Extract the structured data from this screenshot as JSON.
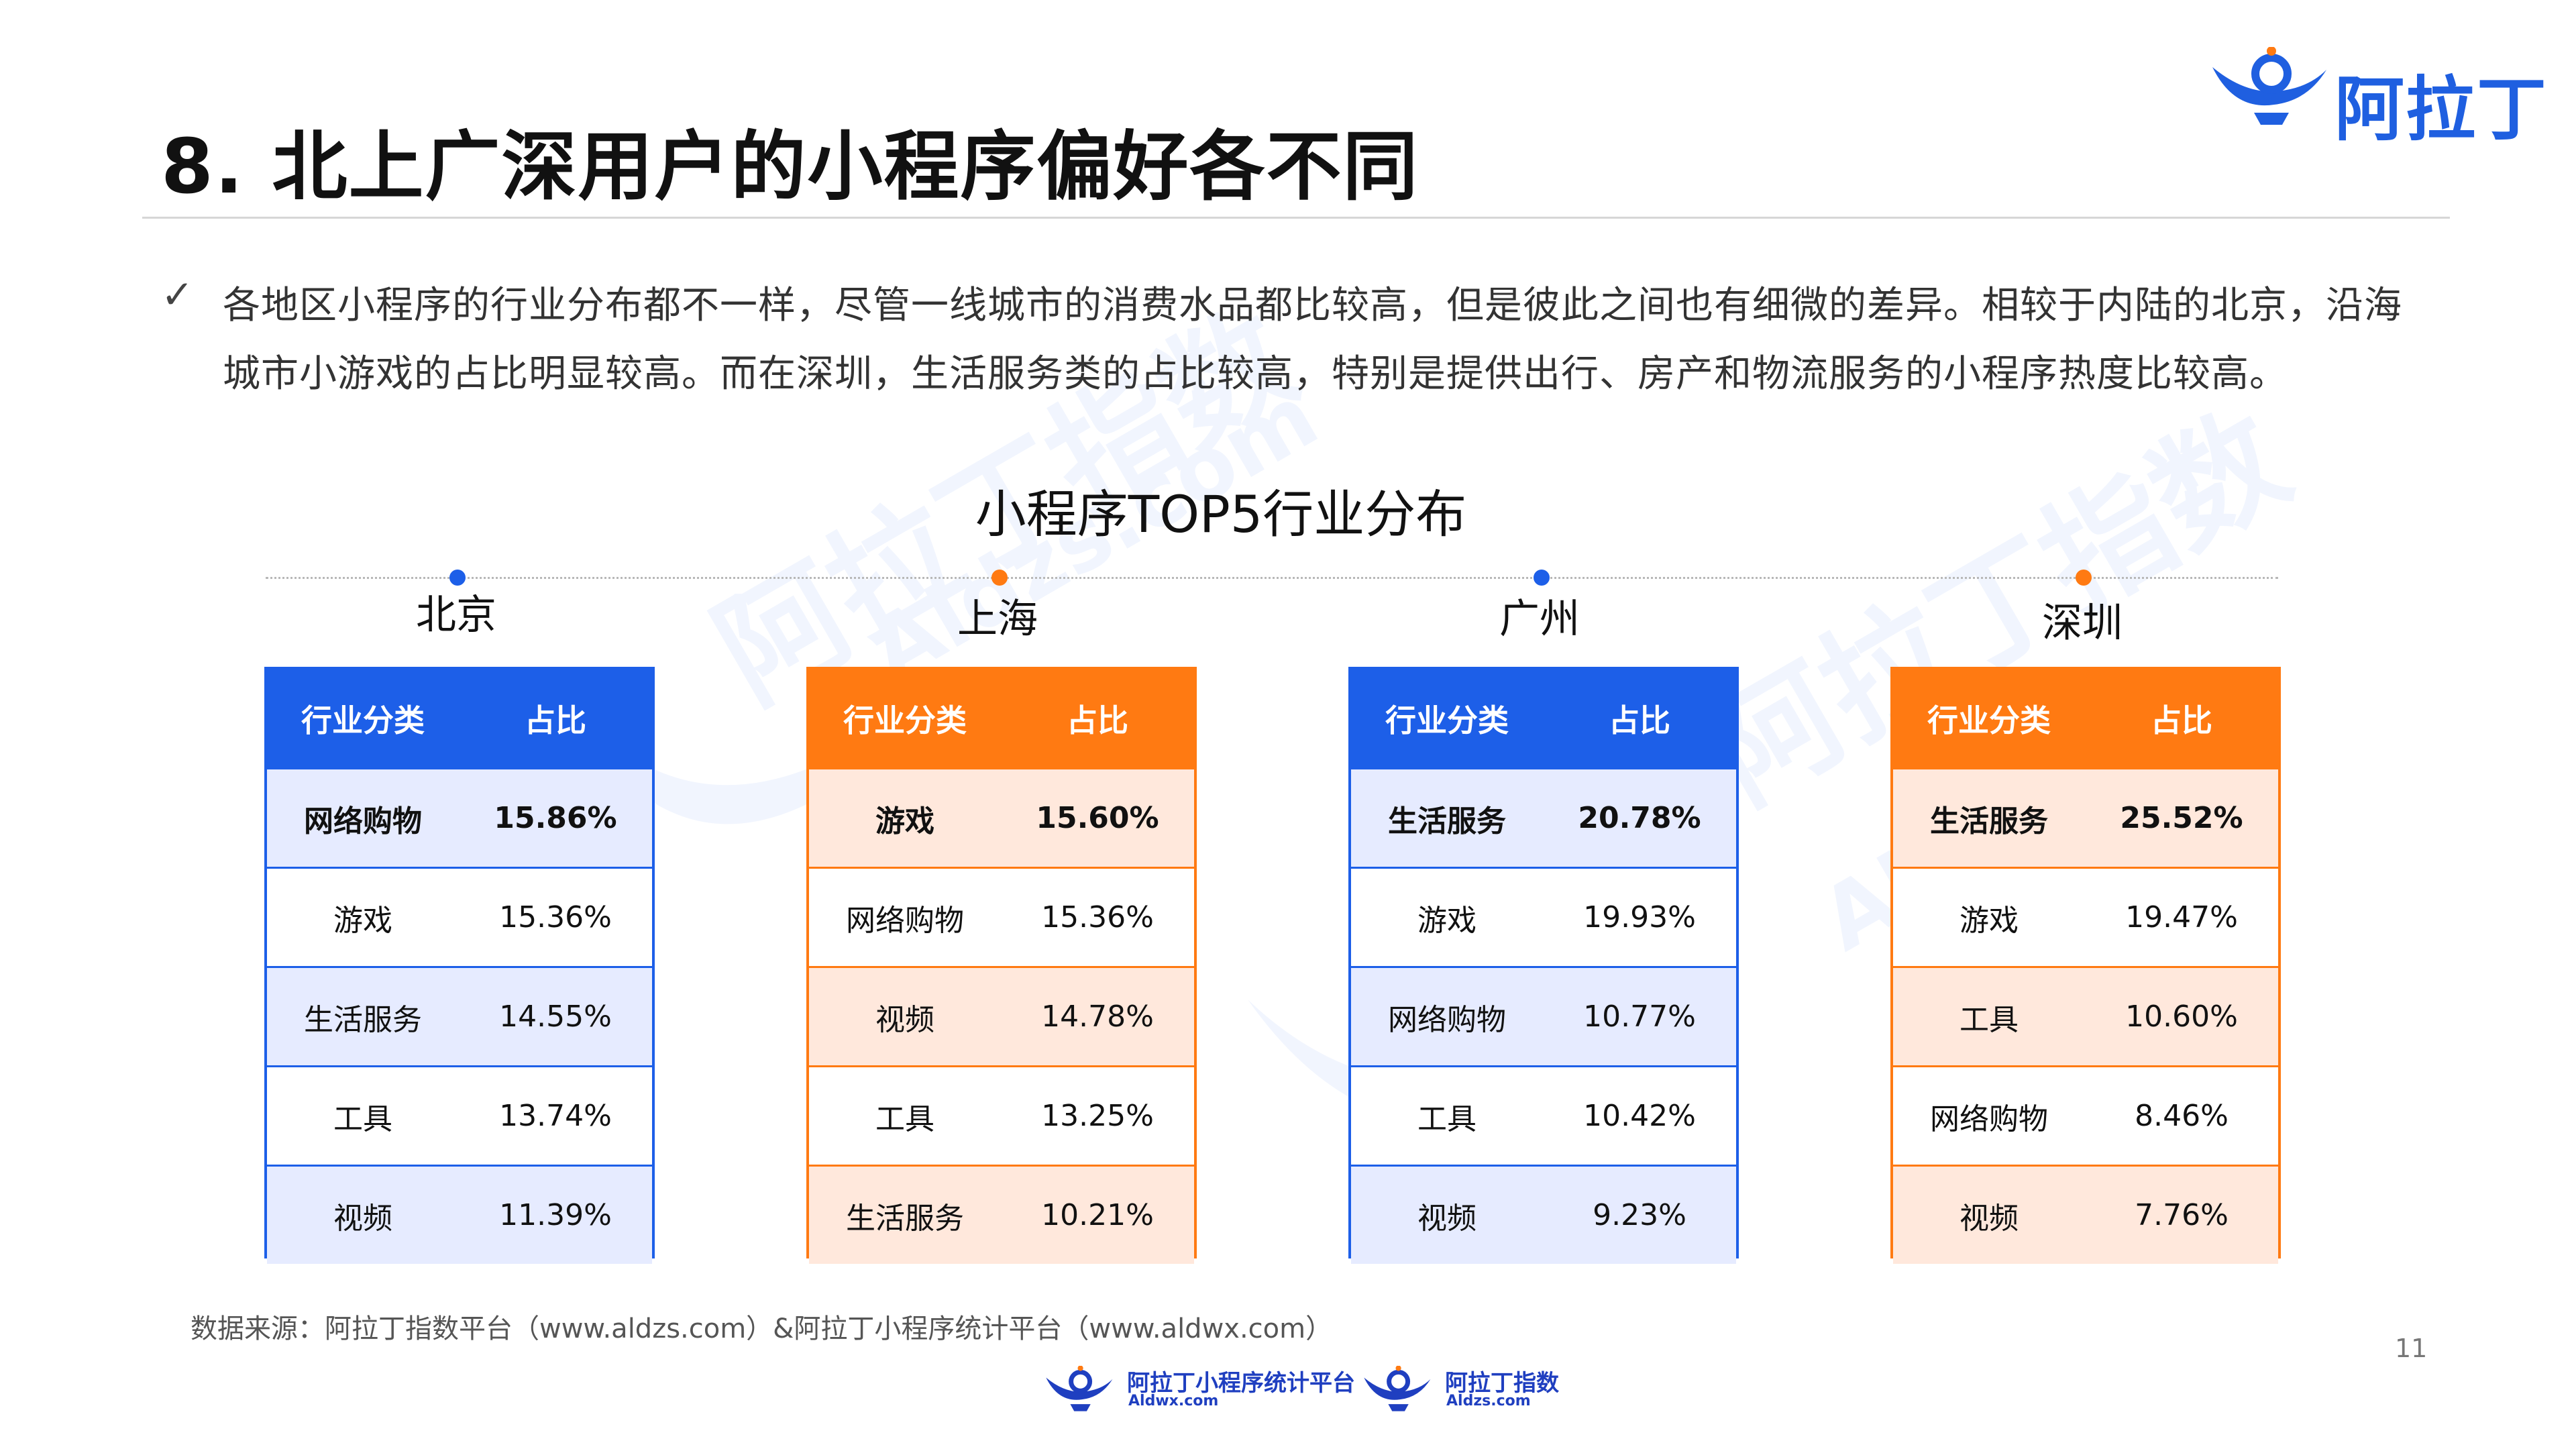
{
  "brand": {
    "name": "阿拉丁"
  },
  "page": {
    "title": "8. 北上广深用户的小程序偏好各不同",
    "bullet_text": "各地区小程序的行业分布都不一样，尽管一线城市的消费水品都比较高，但是彼此之间也有细微的差异。相较于内陆的北京，沿海城市小游戏的占比明显较高。而在深圳，生活服务类的占比较高，特别是提供出行、房产和物流服务的小程序热度比较高。",
    "source": "数据来源：阿拉丁指数平台（www.aldzs.com）&阿拉丁小程序统计平台（www.aldwx.com）",
    "page_number": "11"
  },
  "watermark": {
    "text": "阿拉丁指数",
    "domain": "Aldzs.com"
  },
  "chart_data": {
    "type": "table",
    "title": "小程序TOP5行业分布",
    "columns": [
      "行业分类",
      "占比"
    ],
    "cities": [
      {
        "name": "北京",
        "color": "#1d5fe8",
        "rows": [
          {
            "category": "网络购物",
            "share": "15.86%"
          },
          {
            "category": "游戏",
            "share": "15.36%"
          },
          {
            "category": "生活服务",
            "share": "14.55%"
          },
          {
            "category": "工具",
            "share": "13.74%"
          },
          {
            "category": "视频",
            "share": "11.39%"
          }
        ]
      },
      {
        "name": "上海",
        "color": "#ff7a12",
        "rows": [
          {
            "category": "游戏",
            "share": "15.60%"
          },
          {
            "category": "网络购物",
            "share": "15.36%"
          },
          {
            "category": "视频",
            "share": "14.78%"
          },
          {
            "category": "工具",
            "share": "13.25%"
          },
          {
            "category": "生活服务",
            "share": "10.21%"
          }
        ]
      },
      {
        "name": "广州",
        "color": "#1d5fe8",
        "rows": [
          {
            "category": "生活服务",
            "share": "20.78%"
          },
          {
            "category": "游戏",
            "share": "19.93%"
          },
          {
            "category": "网络购物",
            "share": "10.77%"
          },
          {
            "category": "工具",
            "share": "10.42%"
          },
          {
            "category": "视频",
            "share": "9.23%"
          }
        ]
      },
      {
        "name": "深圳",
        "color": "#ff7a12",
        "rows": [
          {
            "category": "生活服务",
            "share": "25.52%"
          },
          {
            "category": "游戏",
            "share": "19.47%"
          },
          {
            "category": "工具",
            "share": "10.60%"
          },
          {
            "category": "网络购物",
            "share": "8.46%"
          },
          {
            "category": "视频",
            "share": "7.76%"
          }
        ]
      }
    ]
  },
  "footer": {
    "logos": [
      {
        "name": "阿拉丁小程序统计平台",
        "domain": "Aldwx.com"
      },
      {
        "name": "阿拉丁指数",
        "domain": "Aldzs.com"
      }
    ]
  }
}
